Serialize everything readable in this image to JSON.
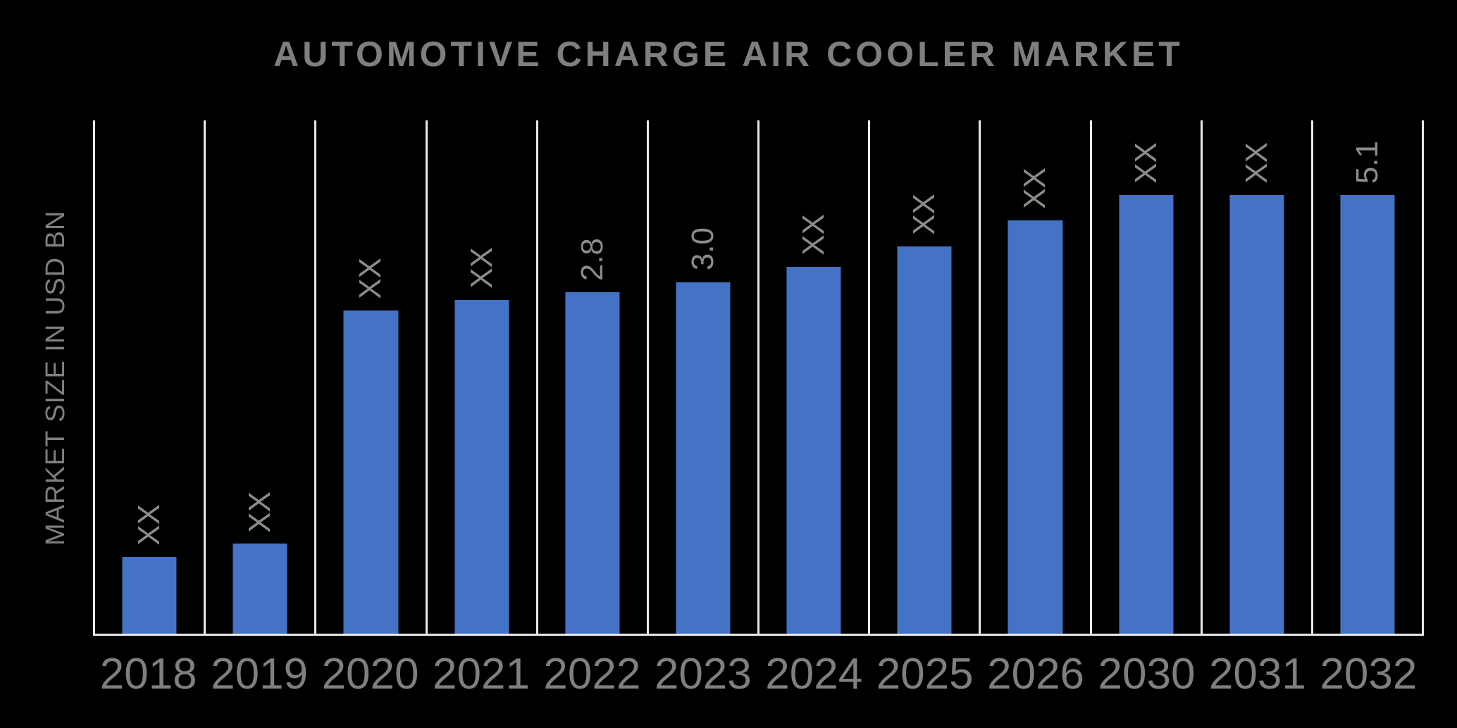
{
  "title": "AUTOMOTIVE CHARGE AIR COOLER MARKET",
  "y_axis_label": "MARKET SIZE IN USD BN",
  "colors": {
    "background": "#000000",
    "bar": "#4472C4",
    "text": "#7f7f7f",
    "gridline": "#e8e8e8"
  },
  "chart_data": {
    "type": "bar",
    "title": "AUTOMOTIVE CHARGE AIR COOLER MARKET",
    "xlabel": "",
    "ylabel": "MARKET SIZE IN USD BN",
    "categories": [
      "2018",
      "2019",
      "2020",
      "2021",
      "2022",
      "2023",
      "2024",
      "2025",
      "2026",
      "2030",
      "2031",
      "2032"
    ],
    "bar_labels": [
      "XX",
      "XX",
      "XX",
      "XX",
      "2.8",
      "3.0",
      "XX",
      "XX",
      "XX",
      "XX",
      "XX",
      "5.1"
    ],
    "labeled_values": {
      "2022": 2.8,
      "2023": 3.0,
      "2032": 5.1
    },
    "bar_height_pct_of_plot": [
      15,
      17.5,
      63,
      65,
      66.5,
      68.5,
      71.5,
      75.5,
      80.5,
      85.5,
      85.5,
      85.5
    ],
    "grid": "vertical-gridlines-only",
    "legend": "none",
    "bar_label_orientation": "rotated-90-bottom-to-top"
  }
}
